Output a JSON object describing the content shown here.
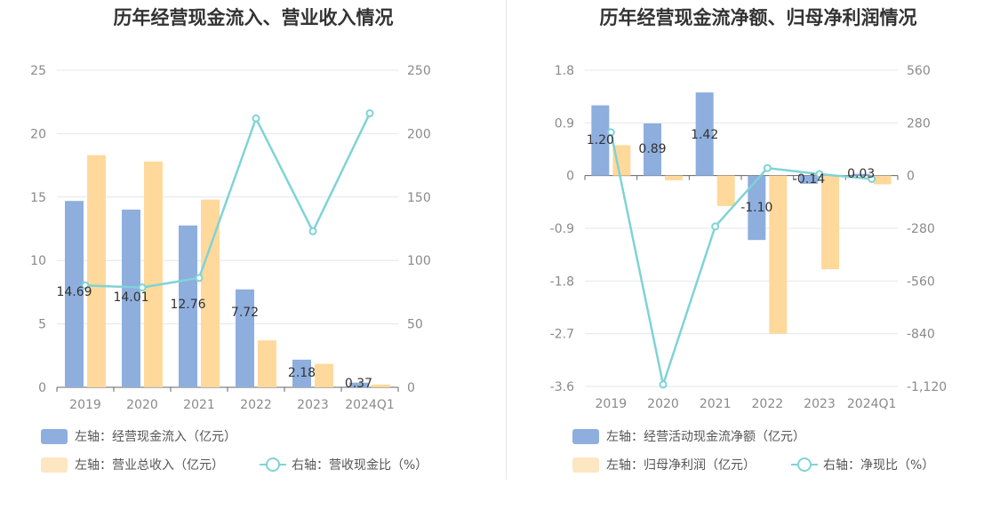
{
  "colors": {
    "bar1": "#8eaedd",
    "bar2": "#ffd99b",
    "bar2_legend": "#fde6c2",
    "line": "#7fd3d6",
    "grid": "#e4e6f0",
    "axis": "#666666"
  },
  "chart_data": [
    {
      "type": "bar",
      "title": "历年经营现金流入、营业收入情况",
      "categories": [
        "2019",
        "2020",
        "2021",
        "2022",
        "2023",
        "2024Q1"
      ],
      "left_axis": {
        "ylim": [
          0,
          25
        ],
        "ticks": [
          "0",
          "5",
          "10",
          "15",
          "20",
          "25"
        ]
      },
      "right_axis": {
        "ylim": [
          0,
          250
        ],
        "ticks": [
          "0",
          "50",
          "100",
          "150",
          "200",
          "250"
        ]
      },
      "series": [
        {
          "name": "左轴：经营现金流入（亿元）",
          "axis": "left",
          "kind": "bar",
          "values": [
            14.69,
            14.01,
            12.76,
            7.72,
            2.18,
            0.37
          ],
          "labels": [
            "14.69",
            "14.01",
            "12.76",
            "7.72",
            "2.18",
            "0.37"
          ]
        },
        {
          "name": "左轴：营业总收入（亿元）",
          "axis": "left",
          "kind": "bar",
          "values": [
            18.3,
            17.8,
            14.8,
            3.7,
            1.85,
            0.22
          ]
        },
        {
          "name": "右轴：营收现金比（%）",
          "axis": "right",
          "kind": "line",
          "values": [
            80.3,
            78.7,
            86.2,
            212,
            123,
            216
          ]
        }
      ],
      "legend": [
        "左轴：经营现金流入（亿元）",
        "左轴：营业总收入（亿元）",
        "右轴：营收现金比（%）"
      ]
    },
    {
      "type": "bar",
      "title": "历年经营现金流净额、归母净利润情况",
      "categories": [
        "2019",
        "2020",
        "2021",
        "2022",
        "2023",
        "2024Q1"
      ],
      "left_axis": {
        "ylim": [
          -3.6,
          1.8
        ],
        "ticks": [
          "-3.6",
          "-2.7",
          "-1.8",
          "-0.9",
          "0",
          "0.9",
          "1.8"
        ]
      },
      "right_axis": {
        "ylim": [
          -1120,
          560
        ],
        "ticks": [
          "-1,120",
          "-840",
          "-560",
          "-280",
          "0",
          "280",
          "560"
        ]
      },
      "series": [
        {
          "name": "左轴：经营活动现金流净额（亿元）",
          "axis": "left",
          "kind": "bar",
          "values": [
            1.2,
            0.89,
            1.42,
            -1.1,
            -0.14,
            0.03
          ],
          "labels": [
            "1.20",
            "0.89",
            "1.42",
            "-1.10",
            "-0.14",
            "0.03"
          ]
        },
        {
          "name": "左轴：归母净利润（亿元）",
          "axis": "left",
          "kind": "bar",
          "values": [
            0.52,
            -0.08,
            -0.52,
            -2.7,
            -1.6,
            -0.15
          ]
        },
        {
          "name": "右轴：净现比（%）",
          "axis": "right",
          "kind": "line",
          "values": [
            230,
            -1110,
            -270,
            40,
            8,
            -18
          ]
        }
      ],
      "legend": [
        "左轴：经营活动现金流净额（亿元）",
        "左轴：归母净利润（亿元）",
        "右轴：净现比（%）"
      ]
    }
  ]
}
